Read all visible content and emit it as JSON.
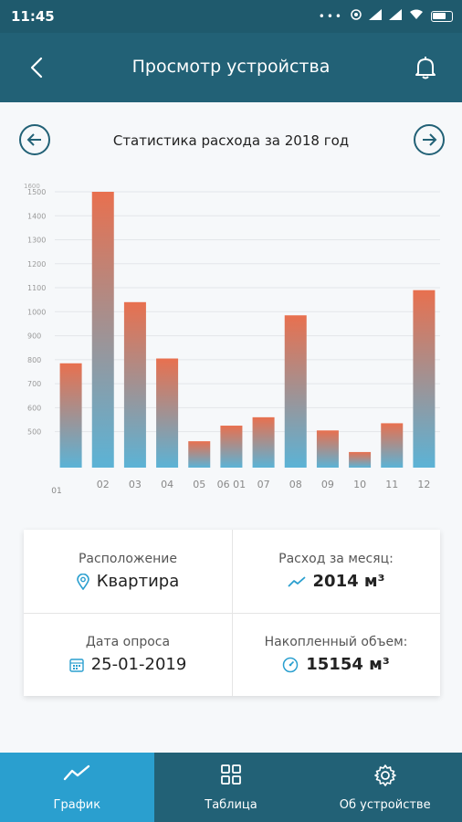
{
  "status_bar": {
    "time": "11:45"
  },
  "header": {
    "title": "Просмотр устройства"
  },
  "chart_header": {
    "title": "Статистика расхода за 2018 год"
  },
  "chart_data": {
    "type": "bar",
    "title": "Статистика расхода за 2018 год",
    "categories": [
      "01",
      "02",
      "03",
      "04",
      "05",
      "06",
      "07",
      "08",
      "09",
      "10",
      "11",
      "12"
    ],
    "x_tick_labels": [
      "01",
      "02",
      "03",
      "04",
      "05",
      "06 01",
      "07",
      "08",
      "09",
      "10",
      "11",
      "12"
    ],
    "values": [
      785,
      1500,
      1040,
      805,
      460,
      525,
      560,
      985,
      505,
      415,
      535,
      1090
    ],
    "yticks": [
      500,
      600,
      700,
      800,
      900,
      1000,
      1100,
      1200,
      1300,
      1400,
      1500
    ],
    "ytick_top": "1600",
    "ylim": [
      350,
      1500
    ],
    "grid": true,
    "legend": "none",
    "colors": {
      "bar_top": "#e8704f",
      "bar_bottom": "#5bb3d6",
      "grid": "#e3e6e9"
    }
  },
  "info": {
    "location_label": "Расположение",
    "location_value": "Квартира",
    "monthly_label": "Расход за месяц:",
    "monthly_value": "2014 м³",
    "date_label": "Дата опроса",
    "date_value": "25-01-2019",
    "total_label": "Накопленный объем:",
    "total_value": "15154 м³"
  },
  "bottom_nav": {
    "items": [
      {
        "label": "График",
        "icon": "chart-line-icon",
        "active": true
      },
      {
        "label": "Таблица",
        "icon": "grid-icon",
        "active": false
      },
      {
        "label": "Об устройстве",
        "icon": "gear-icon",
        "active": false
      }
    ]
  },
  "colors": {
    "primary": "#226176",
    "status_bar": "#1f5a6d",
    "active_tab": "#2a9fcf",
    "accent": "#226176"
  }
}
